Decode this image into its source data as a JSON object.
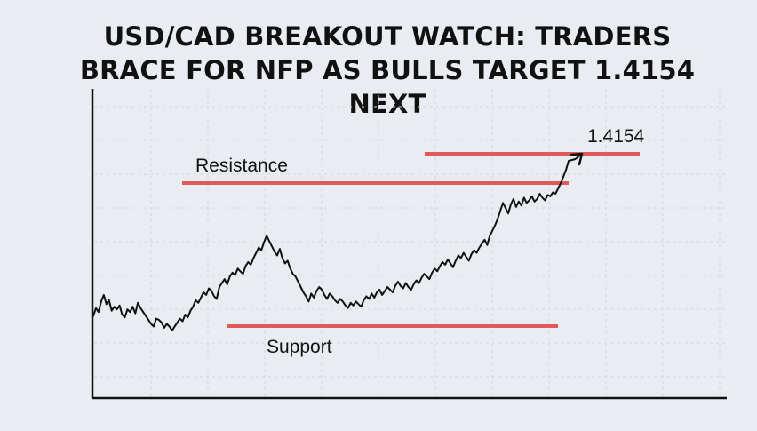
{
  "title_lines": [
    "USD/CAD BREAKOUT WATCH: TRADERS",
    "BRACE FOR NFP AS BULLS TARGET 1.4154",
    "NEXT"
  ],
  "colors": {
    "background": "#e9edf2",
    "level_line": "#e05a5a",
    "price_line": "#111111",
    "axis": "#111111",
    "grid": "#d2d7de"
  },
  "chart_data": {
    "type": "line",
    "grid": true,
    "levels": [
      {
        "name": "Resistance",
        "label": "Resistance"
      },
      {
        "name": "Target",
        "label": "1.4154"
      },
      {
        "name": "Support",
        "label": "Support"
      }
    ],
    "series": [
      {
        "values": [
          30,
          36,
          33,
          41,
          46,
          39,
          42,
          34,
          37,
          35,
          38,
          31,
          29,
          35,
          33,
          37,
          32,
          40,
          36,
          33,
          30,
          27,
          24,
          22,
          28,
          27,
          25,
          21,
          24,
          22,
          19,
          22,
          25,
          28,
          26,
          31,
          29,
          34,
          37,
          42,
          40,
          44,
          48,
          46,
          51,
          49,
          45,
          43,
          52,
          55,
          58,
          54,
          60,
          63,
          61,
          66,
          64,
          62,
          68,
          71,
          69,
          74,
          78,
          82,
          80,
          86,
          91,
          87,
          83,
          79,
          76,
          81,
          74,
          70,
          72,
          66,
          62,
          60,
          56,
          52,
          48,
          45,
          41,
          47,
          44,
          49,
          52,
          50,
          46,
          43,
          47,
          45,
          42,
          40,
          43,
          41,
          38,
          36,
          40,
          38,
          41,
          39,
          37,
          42,
          45,
          43,
          47,
          44,
          48,
          50,
          46,
          49,
          52,
          50,
          48,
          53,
          56,
          53,
          51,
          55,
          52,
          50,
          54,
          57,
          55,
          59,
          62,
          60,
          58,
          63,
          66,
          64,
          68,
          71,
          69,
          73,
          70,
          67,
          72,
          76,
          74,
          78,
          75,
          72,
          77,
          80,
          78,
          82,
          85,
          88,
          84,
          91,
          95,
          99,
          104,
          110,
          116,
          112,
          108,
          115,
          119,
          113,
          117,
          114,
          120,
          116,
          118,
          121,
          117,
          119,
          123,
          120,
          118,
          122,
          121,
          124,
          123,
          127,
          131,
          136,
          141,
          148
        ]
      }
    ]
  }
}
